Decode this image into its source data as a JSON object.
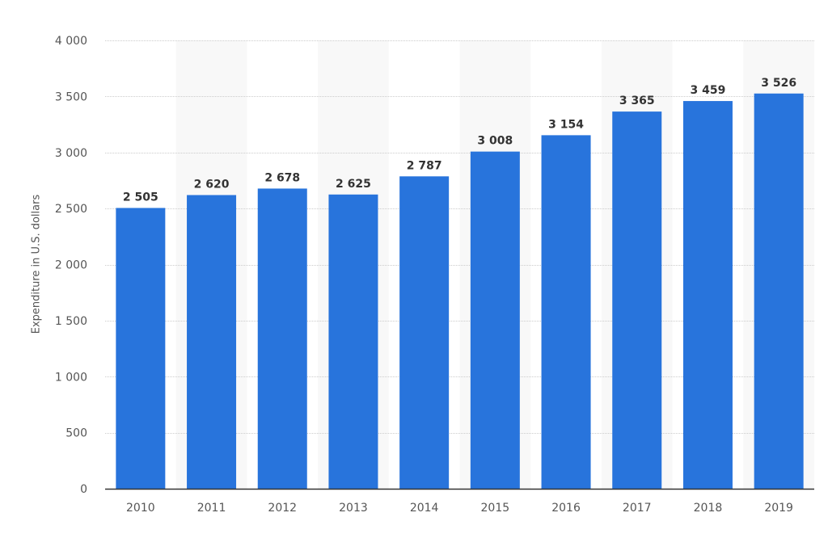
{
  "chart_data": {
    "type": "bar",
    "title": "",
    "xlabel": "",
    "ylabel": "Expenditure in U.S. dollars",
    "categories": [
      "2010",
      "2011",
      "2012",
      "2013",
      "2014",
      "2015",
      "2016",
      "2017",
      "2018",
      "2019"
    ],
    "values": [
      2505,
      2620,
      2678,
      2625,
      2787,
      3008,
      3154,
      3365,
      3459,
      3526
    ],
    "value_labels": [
      "2 505",
      "2 620",
      "2 678",
      "2 625",
      "2 787",
      "3 008",
      "3 154",
      "3 365",
      "3 459",
      "3 526"
    ],
    "ylim": [
      0,
      4000
    ],
    "yticks": [
      0,
      500,
      1000,
      1500,
      2000,
      2500,
      3000,
      3500,
      4000
    ],
    "ytick_labels": [
      "0",
      "500",
      "1 000",
      "1 500",
      "2 000",
      "2 500",
      "3 000",
      "3 500",
      "4 000"
    ],
    "grid": true,
    "legend": null,
    "colors": {
      "bar": "#2874DC",
      "band": "#F8F8F8",
      "grid": "#CCCCCC",
      "axis": "#333333",
      "tick_text": "#555555",
      "value_text": "#333333"
    }
  }
}
